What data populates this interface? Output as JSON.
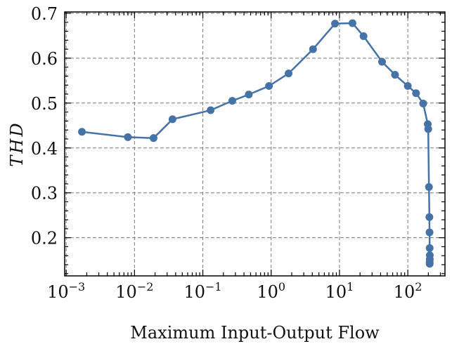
{
  "chart_data": {
    "type": "line",
    "xscale": "log",
    "xlim": [
      0.00095,
      350
    ],
    "ylim": [
      0.115,
      0.703
    ],
    "xlabel": "Maximum Input-Output Flow",
    "ylabel": "THD",
    "grid": true,
    "x_ticks": [
      {
        "value": 0.001,
        "base": "10",
        "exp": "−3"
      },
      {
        "value": 0.01,
        "base": "10",
        "exp": "−2"
      },
      {
        "value": 0.1,
        "base": "10",
        "exp": "−1"
      },
      {
        "value": 1,
        "base": "10",
        "exp": "0"
      },
      {
        "value": 10,
        "base": "10",
        "exp": "1"
      },
      {
        "value": 100,
        "base": "10",
        "exp": "2"
      }
    ],
    "y_ticks": [
      {
        "value": 0.2,
        "label": "0.2"
      },
      {
        "value": 0.3,
        "label": "0.3"
      },
      {
        "value": 0.4,
        "label": "0.4"
      },
      {
        "value": 0.5,
        "label": "0.5"
      },
      {
        "value": 0.6,
        "label": "0.6"
      },
      {
        "value": 0.7,
        "label": "0.7"
      }
    ],
    "series": [
      {
        "color": "#4572a7",
        "points": [
          {
            "x": 0.0017,
            "y": 0.436
          },
          {
            "x": 0.008,
            "y": 0.424
          },
          {
            "x": 0.019,
            "y": 0.422
          },
          {
            "x": 0.036,
            "y": 0.464
          },
          {
            "x": 0.13,
            "y": 0.484
          },
          {
            "x": 0.27,
            "y": 0.505
          },
          {
            "x": 0.47,
            "y": 0.519
          },
          {
            "x": 0.93,
            "y": 0.538
          },
          {
            "x": 1.8,
            "y": 0.566
          },
          {
            "x": 4.1,
            "y": 0.62
          },
          {
            "x": 8.6,
            "y": 0.677
          },
          {
            "x": 15.5,
            "y": 0.678
          },
          {
            "x": 22.5,
            "y": 0.649
          },
          {
            "x": 42,
            "y": 0.592
          },
          {
            "x": 65,
            "y": 0.563
          },
          {
            "x": 100,
            "y": 0.538
          },
          {
            "x": 132,
            "y": 0.522
          },
          {
            "x": 168,
            "y": 0.499
          },
          {
            "x": 196,
            "y": 0.453
          },
          {
            "x": 199,
            "y": 0.442
          },
          {
            "x": 204,
            "y": 0.313
          },
          {
            "x": 207,
            "y": 0.246
          },
          {
            "x": 208,
            "y": 0.212
          },
          {
            "x": 209,
            "y": 0.177
          },
          {
            "x": 210,
            "y": 0.161
          },
          {
            "x": 210,
            "y": 0.152
          },
          {
            "x": 209,
            "y": 0.145
          },
          {
            "x": 209,
            "y": 0.142
          }
        ]
      }
    ]
  }
}
